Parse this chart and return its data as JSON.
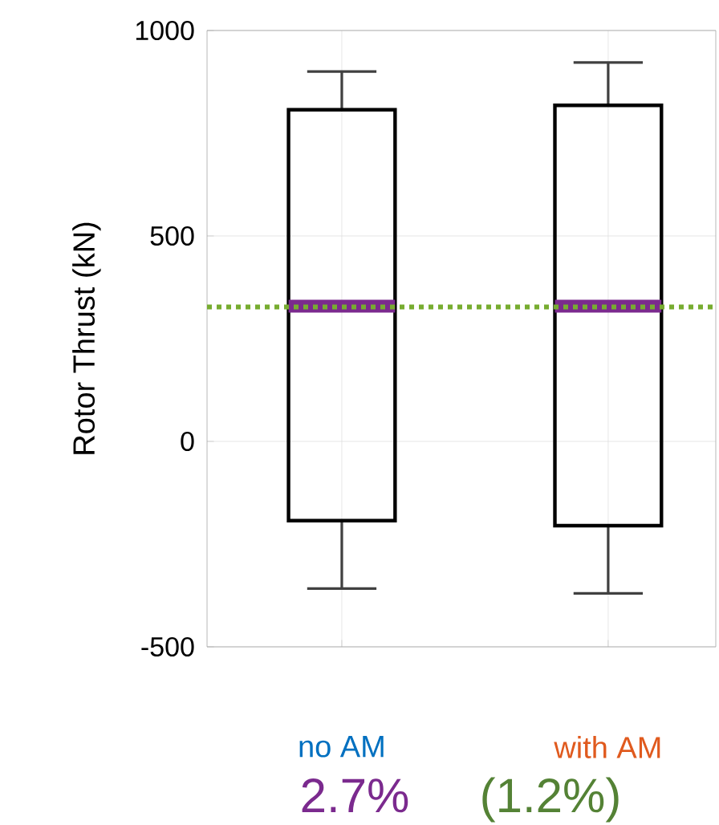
{
  "chart_data": {
    "type": "box",
    "ylabel": "Rotor Thrust (kN)",
    "categories": [
      "no AM",
      "with AM"
    ],
    "series": [
      {
        "color": "#000000",
        "boxes": [
          {
            "low": -358,
            "q1": -193,
            "median": 329,
            "q3": 807,
            "high": 900
          },
          {
            "low": -370,
            "q1": -205,
            "median": 329,
            "q3": 818,
            "high": 922
          }
        ]
      }
    ],
    "ylim": [
      -500,
      1000
    ],
    "yticks": [
      -500,
      0,
      500,
      1000
    ],
    "grid": true,
    "ref_lines": [
      {
        "axis": "y",
        "value": 327,
        "color": "#77ac30",
        "line_style": "dotted"
      }
    ],
    "annotations": [
      "2.7%",
      "(1.2%)"
    ]
  }
}
